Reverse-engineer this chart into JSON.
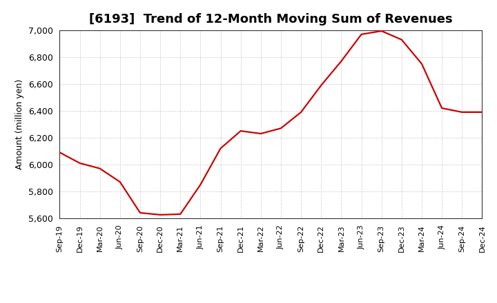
{
  "title": "[6193]  Trend of 12-Month Moving Sum of Revenues",
  "ylabel": "Amount (million yen)",
  "line_color": "#cc0000",
  "background_color": "#ffffff",
  "grid_color": "#bbbbbb",
  "ylim": [
    5600,
    7000
  ],
  "yticks": [
    5600,
    5800,
    6000,
    6200,
    6400,
    6600,
    6800,
    7000
  ],
  "x_labels": [
    "Sep-19",
    "Dec-19",
    "Mar-20",
    "Jun-20",
    "Sep-20",
    "Dec-20",
    "Mar-21",
    "Jun-21",
    "Sep-21",
    "Dec-21",
    "Mar-22",
    "Jun-22",
    "Sep-22",
    "Dec-22",
    "Mar-23",
    "Jun-23",
    "Sep-23",
    "Dec-23",
    "Mar-24",
    "Jun-24",
    "Sep-24",
    "Dec-24"
  ],
  "values": [
    6090,
    6010,
    5970,
    5870,
    5640,
    5625,
    5630,
    5850,
    6120,
    6250,
    6230,
    6270,
    6390,
    6590,
    6770,
    6970,
    6995,
    6930,
    6750,
    6420,
    6390,
    6390
  ],
  "title_fontsize": 13,
  "ylabel_fontsize": 9,
  "tick_fontsize": 9,
  "xtick_fontsize": 8
}
